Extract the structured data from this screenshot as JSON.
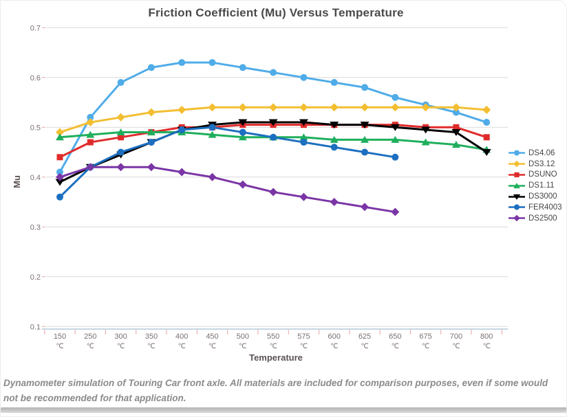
{
  "page": {
    "caption": "Dynamometer simulation of Touring Car front axle. All materials are included for comparison purposes, even if some would not be recommended for that application."
  },
  "chart_data": {
    "type": "line",
    "title": "Friction Coefficient (Mu) Versus Temperature",
    "xlabel": "Temperature",
    "ylabel": "Mu",
    "x_unit": "℃",
    "categories": [
      "150",
      "250",
      "300",
      "350",
      "400",
      "450",
      "500",
      "550",
      "575",
      "600",
      "625",
      "650",
      "675",
      "700",
      "800"
    ],
    "yticks": [
      0.7,
      0.6,
      0.5,
      0.4,
      0.3,
      0.2,
      0.1
    ],
    "ylim": [
      0.1,
      0.7
    ],
    "grid": true,
    "legend_position": "right",
    "axis_colors": {
      "gridline": "#d9d9d9",
      "axis_line": "#b3c7d9",
      "tick_mark": "#e9a5a5",
      "tick_label": "#7b6f6f"
    },
    "series": [
      {
        "name": "DS4.06",
        "color": "#4FACE8",
        "marker": "circle",
        "values": [
          0.41,
          0.52,
          0.59,
          0.62,
          0.63,
          0.63,
          0.62,
          0.61,
          0.6,
          0.59,
          0.58,
          0.56,
          0.545,
          0.53,
          0.51
        ]
      },
      {
        "name": "DS3.12",
        "color": "#F3BE31",
        "marker": "diamond",
        "values": [
          0.49,
          0.51,
          0.52,
          0.53,
          0.535,
          0.54,
          0.54,
          0.54,
          0.54,
          0.54,
          0.54,
          0.54,
          0.54,
          0.54,
          0.535
        ]
      },
      {
        "name": "DSUNO",
        "color": "#E02B2B",
        "marker": "square",
        "values": [
          0.44,
          0.47,
          0.48,
          0.49,
          0.5,
          0.5,
          0.505,
          0.505,
          0.505,
          0.505,
          0.505,
          0.505,
          0.5,
          0.5,
          0.48
        ]
      },
      {
        "name": "DS1.11",
        "color": "#1FAF5C",
        "marker": "triangle-up",
        "values": [
          0.48,
          0.485,
          0.49,
          0.49,
          0.49,
          0.485,
          0.48,
          0.48,
          0.48,
          0.475,
          0.475,
          0.475,
          0.47,
          0.465,
          0.455
        ]
      },
      {
        "name": "DS3000",
        "color": "#000000",
        "marker": "triangle-down",
        "values": [
          0.39,
          0.42,
          0.445,
          0.47,
          0.495,
          0.505,
          0.51,
          0.51,
          0.51,
          0.505,
          0.505,
          0.5,
          0.495,
          0.49,
          0.45
        ]
      },
      {
        "name": "FER4003",
        "color": "#1C6FC0",
        "marker": "circle",
        "values": [
          0.36,
          0.42,
          0.45,
          0.47,
          0.495,
          0.5,
          0.49,
          0.48,
          0.47,
          0.46,
          0.45,
          0.44,
          null,
          null,
          null
        ]
      },
      {
        "name": "DS2500",
        "color": "#7A35A5",
        "marker": "diamond",
        "values": [
          0.4,
          0.42,
          0.42,
          0.42,
          0.41,
          0.4,
          0.385,
          0.37,
          0.36,
          0.35,
          0.34,
          0.33,
          null,
          null,
          null
        ]
      }
    ]
  }
}
